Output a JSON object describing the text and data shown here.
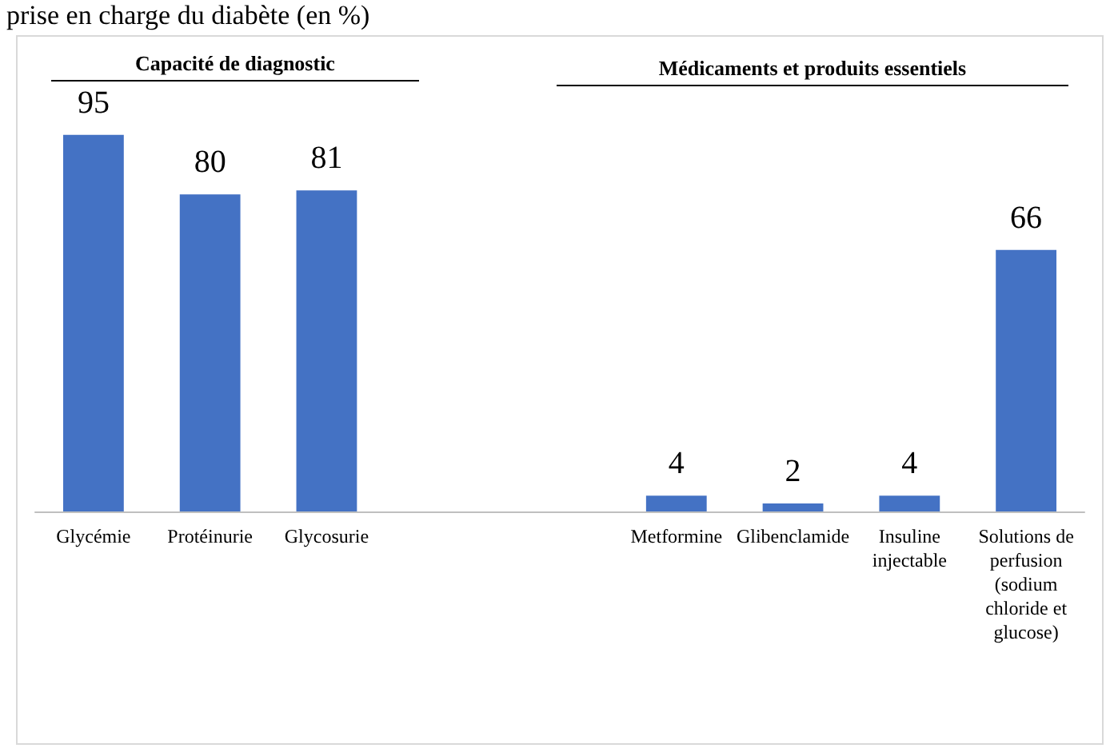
{
  "chart_data": {
    "type": "bar",
    "title": "prise en charge du diabète (en %)",
    "categories": [
      "Glycémie",
      "Protéinurie",
      "Glycosurie",
      null,
      null,
      "Metformine",
      "Glibenclamide",
      "Insuline injectable",
      "Solutions de perfusion (sodium chloride et glucose)"
    ],
    "values": [
      95,
      80,
      81,
      null,
      null,
      4,
      2,
      4,
      66
    ],
    "color": "#4472c4",
    "data_labels": true,
    "annotations": [
      "Capacité de diagnostic",
      "Médicaments et produits essentiels"
    ]
  }
}
